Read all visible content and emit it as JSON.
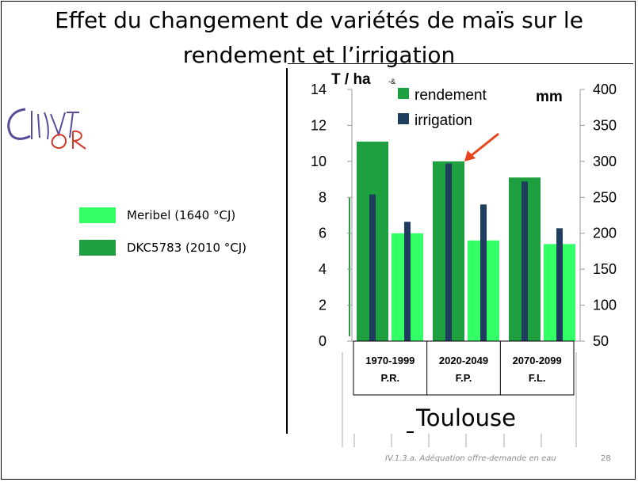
{
  "slide": {
    "title_line1": "Effet du changement de variétés de maïs sur le",
    "title_line2": "rendement et l’irrigation",
    "legend": [
      {
        "label": "Meribel (1640 °CJ)",
        "color": "#33ff66"
      },
      {
        "label": "DKC5783 (2010 °CJ)",
        "color": "#1fa040"
      }
    ],
    "footer": "IV.1.3.a. Adéquation offre-demande en eau",
    "page_number": "28",
    "logo_text": "ClimatOR",
    "logo_colors": [
      "#5b4a9a",
      "#d23a2a"
    ]
  },
  "chart_data": {
    "type": "bar",
    "ylabel": "T / ha",
    "ylabel_suffix": "-&",
    "y2label": "mm",
    "ylim": [
      0,
      14
    ],
    "yticks": [
      "0",
      "2",
      "4",
      "6",
      "8",
      "10",
      "12",
      "14"
    ],
    "y2lim": [
      50,
      400
    ],
    "y2ticks": [
      "50",
      "100",
      "150",
      "200",
      "250",
      "300",
      "350",
      "400"
    ],
    "categories": [
      {
        "period": "1970-1999",
        "code": "P.R."
      },
      {
        "period": "2020-2049",
        "code": "F.P."
      },
      {
        "period": "2070-2099",
        "code": "F.L."
      }
    ],
    "series": [
      {
        "name": "rendement",
        "axis": "left",
        "color": "#1fa040",
        "values": [
          11.1,
          10.0,
          9.1
        ],
        "variety": "DKC5783"
      },
      {
        "name": "rendement",
        "axis": "left",
        "color": "#33ff66",
        "values": [
          6.0,
          5.6,
          5.4
        ],
        "variety": "Meribel"
      },
      {
        "name": "irrigation",
        "axis": "right",
        "color": "#1f3d5c",
        "values_dkc": [
          254,
          297,
          272
        ],
        "values_meribel": [
          216,
          240,
          207
        ]
      }
    ],
    "legend_labels": {
      "rendement": "rendement",
      "irrigation": "irrigation"
    },
    "site": "Toulouse",
    "arrow_color": "#e8431a"
  }
}
